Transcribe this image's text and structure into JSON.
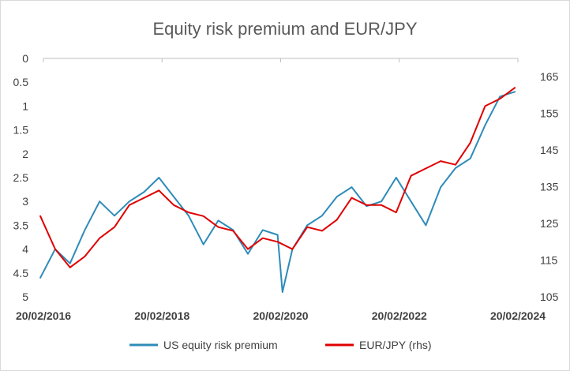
{
  "chart_data": {
    "type": "line",
    "title": "Equity risk premium and EUR/JPY",
    "xlabel": "",
    "ylabel": "",
    "x_ticks": [
      "20/02/2016",
      "20/02/2018",
      "20/02/2020",
      "20/02/2022",
      "20/02/2024"
    ],
    "x_range": [
      "2016-02-20",
      "2024-02-20"
    ],
    "y_left": {
      "inverted": true,
      "range": [
        0,
        5
      ],
      "ticks": [
        "0",
        "0.5",
        "1",
        "1.5",
        "2",
        "2.5",
        "3",
        "3.5",
        "4",
        "4.5",
        "5"
      ]
    },
    "y_right": {
      "range": [
        105,
        170
      ],
      "ticks": [
        "105",
        "115",
        "125",
        "135",
        "145",
        "155",
        "165"
      ]
    },
    "grid": false,
    "legend_position": "bottom",
    "series": [
      {
        "name": "US equity risk premium",
        "axis": "left",
        "color": "#2e8bb8",
        "x": [
          "2016-02",
          "2016-05",
          "2016-08",
          "2016-11",
          "2017-02",
          "2017-05",
          "2017-08",
          "2017-11",
          "2018-02",
          "2018-05",
          "2018-08",
          "2018-11",
          "2019-02",
          "2019-05",
          "2019-08",
          "2019-11",
          "2020-02",
          "2020-03",
          "2020-05",
          "2020-08",
          "2020-11",
          "2021-02",
          "2021-05",
          "2021-08",
          "2021-11",
          "2022-02",
          "2022-05",
          "2022-08",
          "2022-11",
          "2023-02",
          "2023-05",
          "2023-08",
          "2023-11",
          "2024-02"
        ],
        "values": [
          4.6,
          4.0,
          4.3,
          3.6,
          3.0,
          3.3,
          3.0,
          2.8,
          2.5,
          2.9,
          3.3,
          3.9,
          3.4,
          3.6,
          4.1,
          3.6,
          3.7,
          4.9,
          4.0,
          3.5,
          3.3,
          2.9,
          2.7,
          3.1,
          3.0,
          2.5,
          3.0,
          3.5,
          2.7,
          2.3,
          2.1,
          1.4,
          0.8,
          0.7
        ]
      },
      {
        "name": "EUR/JPY (rhs)",
        "axis": "right",
        "color": "#e00000",
        "x": [
          "2016-02",
          "2016-05",
          "2016-08",
          "2016-11",
          "2017-02",
          "2017-05",
          "2017-08",
          "2017-11",
          "2018-02",
          "2018-05",
          "2018-08",
          "2018-11",
          "2019-02",
          "2019-05",
          "2019-08",
          "2019-11",
          "2020-02",
          "2020-05",
          "2020-08",
          "2020-11",
          "2021-02",
          "2021-05",
          "2021-08",
          "2021-11",
          "2022-02",
          "2022-05",
          "2022-08",
          "2022-11",
          "2023-02",
          "2023-05",
          "2023-08",
          "2023-11",
          "2024-02"
        ],
        "values": [
          127,
          118,
          113,
          116,
          121,
          124,
          130,
          132,
          134,
          130,
          128,
          127,
          124,
          123,
          118,
          121,
          120,
          118,
          124,
          123,
          126,
          132,
          130,
          130,
          128,
          138,
          140,
          142,
          141,
          147,
          157,
          159,
          162
        ]
      }
    ]
  }
}
